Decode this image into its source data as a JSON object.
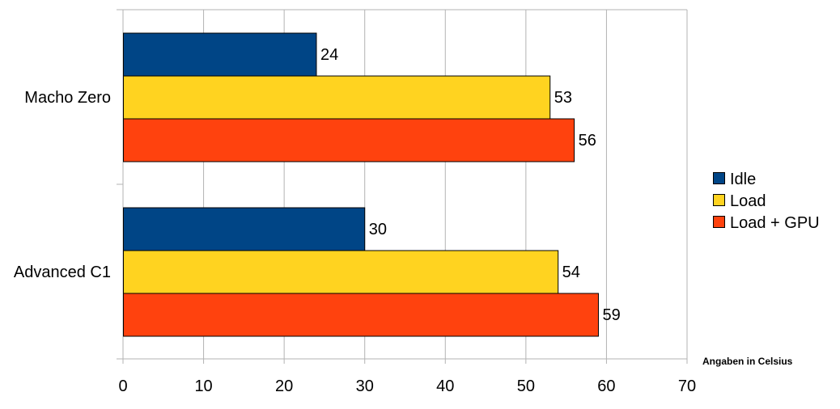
{
  "chart_data": {
    "type": "bar",
    "orientation": "horizontal",
    "title": "",
    "xlabel": "",
    "ylabel": "",
    "categories": [
      "Macho Zero",
      "Advanced C1"
    ],
    "series": [
      {
        "name": "Idle",
        "values": [
          24,
          30
        ],
        "color": "#004586"
      },
      {
        "name": "Load",
        "values": [
          53,
          54
        ],
        "color": "#FFD320"
      },
      {
        "name": "Load + GPU",
        "values": [
          56,
          59
        ],
        "color": "#FF420E"
      }
    ],
    "xlim": [
      0,
      70
    ],
    "x_ticks": [
      0,
      10,
      20,
      30,
      40,
      50,
      60,
      70
    ],
    "grid": true,
    "legend_position": "right",
    "data_labels": true,
    "note": "Angaben in Celsius"
  }
}
